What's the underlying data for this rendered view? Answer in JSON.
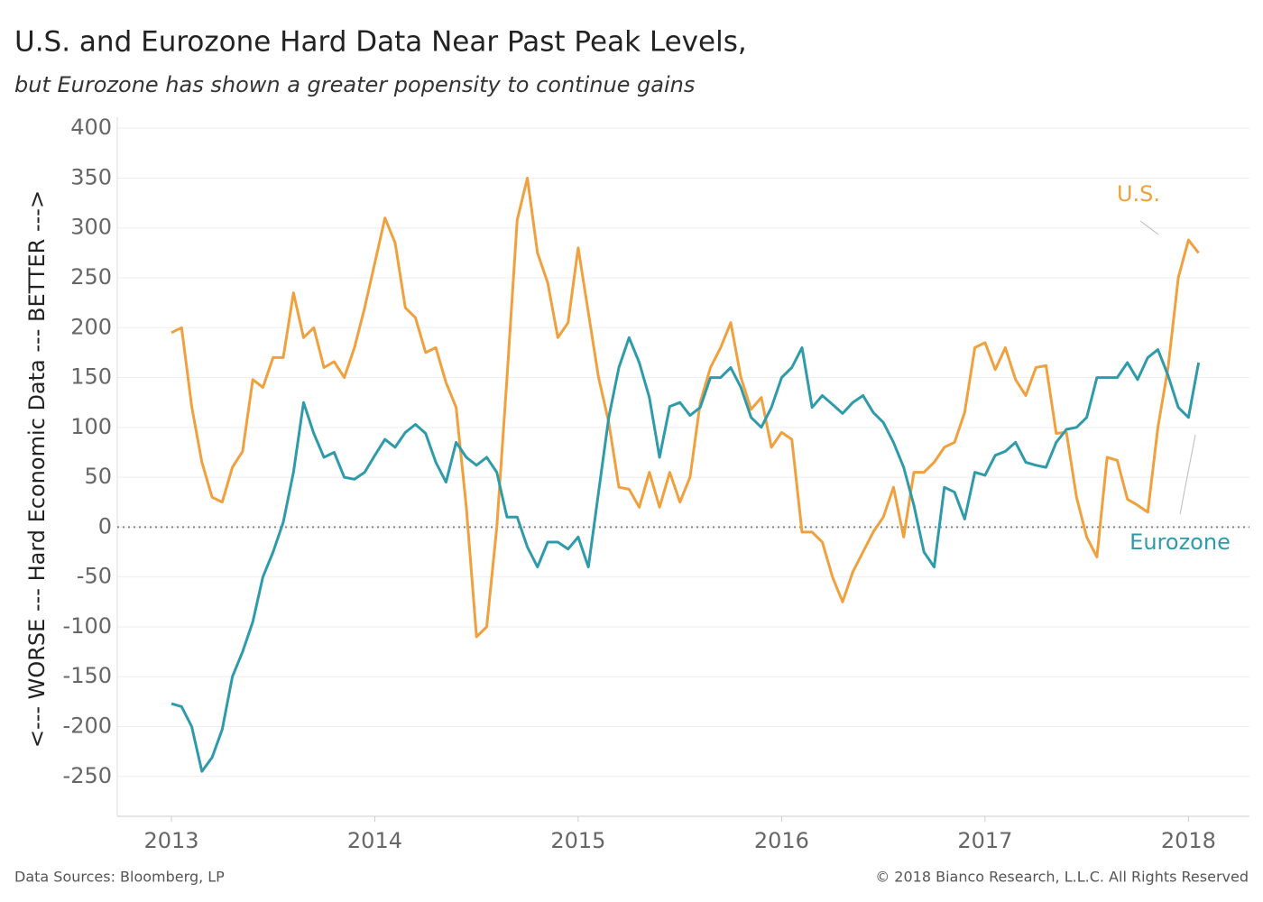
{
  "chart_data": {
    "type": "line",
    "title": "U.S. and Eurozone Hard Data Near Past Peak Levels,",
    "subtitle": "but Eurozone has shown a greater popensity to continue gains",
    "y_label": "<--- WORSE --- Hard Economic Data --- BETTER --->",
    "source": "Data Sources: Bloomberg, LP",
    "copyright": "© 2018 Bianco Research, L.L.C. All Rights Reserved",
    "x": [
      2013,
      2013.05,
      2013.1,
      2013.15,
      2013.2,
      2013.25,
      2013.3,
      2013.35,
      2013.4,
      2013.45,
      2013.5,
      2013.55,
      2013.6,
      2013.65,
      2013.7,
      2013.75,
      2013.8,
      2013.85,
      2013.9,
      2013.95,
      2014,
      2014.05,
      2014.1,
      2014.15,
      2014.2,
      2014.25,
      2014.3,
      2014.35,
      2014.4,
      2014.45,
      2014.5,
      2014.55,
      2014.6,
      2014.65,
      2014.7,
      2014.75,
      2014.8,
      2014.85,
      2014.9,
      2014.95,
      2015,
      2015.05,
      2015.1,
      2015.15,
      2015.2,
      2015.25,
      2015.3,
      2015.35,
      2015.4,
      2015.45,
      2015.5,
      2015.55,
      2015.6,
      2015.65,
      2015.7,
      2015.75,
      2015.8,
      2015.85,
      2015.9,
      2015.95,
      2016,
      2016.05,
      2016.1,
      2016.15,
      2016.2,
      2016.25,
      2016.3,
      2016.35,
      2016.4,
      2016.45,
      2016.5,
      2016.55,
      2016.6,
      2016.65,
      2016.7,
      2016.75,
      2016.8,
      2016.85,
      2016.9,
      2016.95,
      2017,
      2017.05,
      2017.1,
      2017.15,
      2017.2,
      2017.25,
      2017.3,
      2017.35,
      2017.4,
      2017.45,
      2017.5,
      2017.55,
      2017.6,
      2017.65,
      2017.7,
      2017.75,
      2017.8,
      2017.85,
      2017.9,
      2017.95,
      2018,
      2018.05
    ],
    "series": [
      {
        "name": "U.S.",
        "color": "#f0a03c",
        "values": [
          195,
          200,
          121,
          65,
          30,
          25,
          60,
          76,
          148,
          140,
          170,
          170,
          235,
          190,
          200,
          160,
          166,
          150,
          180,
          220,
          265,
          310,
          285,
          220,
          210,
          175,
          180,
          145,
          120,
          20,
          -110,
          -100,
          0,
          150,
          308,
          350,
          275,
          245,
          190,
          205,
          280,
          215,
          150,
          105,
          40,
          38,
          20,
          55,
          20,
          55,
          25,
          50,
          125,
          160,
          180,
          205,
          150,
          118,
          130,
          80,
          95,
          88,
          -5,
          -5,
          -15,
          -50,
          -75,
          -45,
          -25,
          -5,
          10,
          40,
          -10,
          55,
          55,
          65,
          80,
          85,
          115,
          180,
          185,
          158,
          180,
          148,
          132,
          160,
          162,
          94,
          95,
          30,
          -10,
          -30,
          70,
          67,
          28,
          22,
          15,
          100,
          160,
          250,
          288,
          275
        ]
      },
      {
        "name": "Eurozone",
        "color": "#2e9bab",
        "values": [
          -177,
          -180,
          -200,
          -245,
          -231,
          -203,
          -150,
          -125,
          -95,
          -50,
          -25,
          5,
          55,
          125,
          94,
          70,
          75,
          50,
          48,
          55,
          72,
          88,
          80,
          95,
          103,
          94,
          65,
          45,
          85,
          70,
          62,
          70,
          55,
          10,
          10,
          -20,
          -40,
          -15,
          -15,
          -22,
          -10,
          -40,
          35,
          110,
          160,
          190,
          165,
          130,
          70,
          121,
          125,
          112,
          120,
          150,
          150,
          160,
          140,
          110,
          100,
          120,
          150,
          160,
          180,
          120,
          132,
          123,
          114,
          125,
          132,
          115,
          105,
          85,
          60,
          22,
          -25,
          -40,
          40,
          35,
          8,
          55,
          52,
          72,
          76,
          85,
          65,
          62,
          60,
          85,
          98,
          100,
          110,
          150,
          150,
          150,
          165,
          148,
          170,
          178,
          152,
          120,
          110,
          165
        ]
      }
    ],
    "xlim": [
      2012.734,
      2018.3
    ],
    "xticks": [
      2013,
      2014,
      2015,
      2016,
      2017,
      2018
    ],
    "ylim": [
      -290,
      411
    ],
    "yticks": [
      -250,
      -200,
      -150,
      -100,
      -50,
      0,
      50,
      100,
      150,
      200,
      250,
      300,
      350,
      400
    ],
    "zero_line": 0,
    "grid": true
  }
}
